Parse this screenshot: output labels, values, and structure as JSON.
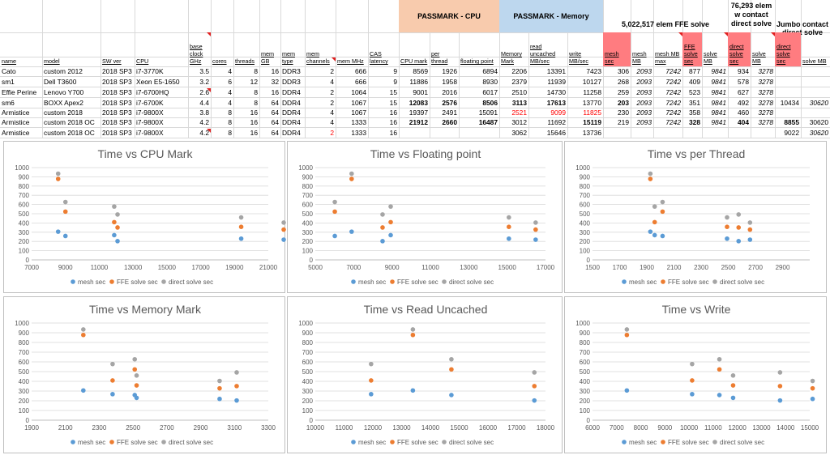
{
  "header_bands": {
    "passmark_cpu": "PASSMARK - CPU",
    "passmark_memory": "PASSMARK - Memory",
    "ffe_solve": "5,022,517 elem FFE solve",
    "contact_direct": "76,293 elem w contact direct solve",
    "jumbo_contact": "Jumbo contact direct solve"
  },
  "columns": [
    "name",
    "model",
    "SW ver",
    "CPU",
    "base clock GHz",
    "cores",
    "threads",
    "mem GB",
    "mem type",
    "mem channels",
    "mem MHz",
    "CAS latency",
    "CPU mark",
    "per thread",
    "floating point",
    "Memory Mark",
    "read uncached MB/sec",
    "write MB/sec",
    "mesh sec",
    "mesh MB",
    "mesh MB max",
    "FFE solve sec",
    "solve MB",
    "direct solve sec",
    "solve MB",
    "direct solve sec",
    "solve MB"
  ],
  "rows": [
    [
      "Cato",
      "custom 2012",
      "2018 SP3",
      "i7-3770K",
      "3.5",
      "4",
      "8",
      "16",
      "DDR3",
      "2",
      "666",
      "9",
      "8569",
      "1926",
      "6894",
      "2206",
      "13391",
      "7423",
      "306",
      "2093",
      "7242",
      "877",
      "9841",
      "934",
      "3278",
      "",
      ""
    ],
    [
      "sm1",
      "Dell T3600",
      "2018 SP3",
      "Xeon E5-1650",
      "3.2",
      "6",
      "12",
      "32",
      "DDR3",
      "4",
      "666",
      "9",
      "11886",
      "1958",
      "8930",
      "2379",
      "11939",
      "10127",
      "268",
      "2093",
      "7242",
      "409",
      "9841",
      "578",
      "3278",
      "",
      ""
    ],
    [
      "Effie Perine",
      "Lenovo Y700",
      "2018 SP3",
      "i7-6700HQ",
      "2.6",
      "4",
      "8",
      "16",
      "DDR4",
      "2",
      "1064",
      "15",
      "9001",
      "2016",
      "6017",
      "2510",
      "14730",
      "11258",
      "259",
      "2093",
      "7242",
      "523",
      "9841",
      "627",
      "3278",
      "",
      ""
    ],
    [
      "sm6",
      "BOXX Apex2",
      "2018 SP3",
      "i7-6700K",
      "4.4",
      "4",
      "8",
      "64",
      "DDR4",
      "2",
      "1067",
      "15",
      "12083",
      "2576",
      "8506",
      "3113",
      "17613",
      "13770",
      "203",
      "2093",
      "7242",
      "351",
      "9841",
      "492",
      "3278",
      "10434",
      "30620"
    ],
    [
      "Armistice",
      "custom 2018",
      "2018 SP3",
      "i7-9800X",
      "3.8",
      "8",
      "16",
      "64",
      "DDR4",
      "4",
      "1067",
      "16",
      "19397",
      "2491",
      "15091",
      "2521",
      "9099",
      "11825",
      "230",
      "2093",
      "7242",
      "358",
      "9841",
      "460",
      "3278",
      "",
      ""
    ],
    [
      "Armistice",
      "custom 2018 OC",
      "2018 SP3",
      "i7-9800X",
      "4.2",
      "8",
      "16",
      "64",
      "DDR4",
      "4",
      "1333",
      "16",
      "21912",
      "2660",
      "16487",
      "3012",
      "11692",
      "15119",
      "219",
      "2093",
      "7242",
      "328",
      "9841",
      "404",
      "3278",
      "8855",
      "30620"
    ],
    [
      "Armistice",
      "custom 2018 OC",
      "2018 SP3",
      "i7-9800X",
      "4.2",
      "8",
      "16",
      "64",
      "DDR4",
      "2",
      "1333",
      "16",
      "",
      "",
      "",
      "3062",
      "15646",
      "13736",
      "",
      "",
      "",
      "",
      "",
      "",
      "",
      "9022",
      "30620"
    ]
  ],
  "colors": {
    "cpu_band": "#f8cbad",
    "mem_band": "#bdd7ee",
    "red_header": "#ff7c80",
    "mesh": "#5b9bd5",
    "ffe": "#ed7d31",
    "direct": "#a5a5a5",
    "red_text": "#ff0000"
  },
  "chart_data": [
    {
      "type": "scatter",
      "title": "Time vs CPU Mark",
      "xlim": [
        7000,
        21000
      ],
      "xticks": [
        7000,
        9000,
        11000,
        13000,
        15000,
        17000,
        19000,
        21000
      ],
      "ylim": [
        0,
        1000
      ],
      "yticks": [
        0,
        100,
        200,
        300,
        400,
        500,
        600,
        700,
        800,
        900,
        1000
      ],
      "series": [
        {
          "name": "mesh sec",
          "x": [
            8569,
            11886,
            9001,
            12083,
            19397,
            21912
          ],
          "y": [
            306,
            268,
            259,
            203,
            230,
            219
          ]
        },
        {
          "name": "FFE solve sec",
          "x": [
            8569,
            11886,
            9001,
            12083,
            19397,
            21912
          ],
          "y": [
            877,
            409,
            523,
            351,
            358,
            328
          ]
        },
        {
          "name": "direct solve sec",
          "x": [
            8569,
            11886,
            9001,
            12083,
            19397,
            21912
          ],
          "y": [
            934,
            578,
            627,
            492,
            460,
            404
          ]
        }
      ]
    },
    {
      "type": "scatter",
      "title": "Time vs Floating point",
      "xlim": [
        5000,
        17000
      ],
      "xticks": [
        5000,
        7000,
        9000,
        11000,
        13000,
        15000,
        17000
      ],
      "ylim": [
        0,
        1000
      ],
      "yticks": [
        0,
        100,
        200,
        300,
        400,
        500,
        600,
        700,
        800,
        900,
        1000
      ],
      "series": [
        {
          "name": "mesh sec",
          "x": [
            6894,
            8930,
            6017,
            8506,
            15091,
            16487
          ],
          "y": [
            306,
            268,
            259,
            203,
            230,
            219
          ]
        },
        {
          "name": "FFE solve sec",
          "x": [
            6894,
            8930,
            6017,
            8506,
            15091,
            16487
          ],
          "y": [
            877,
            409,
            523,
            351,
            358,
            328
          ]
        },
        {
          "name": "direct solve sec",
          "x": [
            6894,
            8930,
            6017,
            8506,
            15091,
            16487
          ],
          "y": [
            934,
            578,
            627,
            492,
            460,
            404
          ]
        }
      ]
    },
    {
      "type": "scatter",
      "title": "Time vs per Thread",
      "xlim": [
        1500,
        3100
      ],
      "xticks": [
        1500,
        1700,
        1900,
        2100,
        2300,
        2500,
        2700,
        2900
      ],
      "ylim": [
        0,
        1000
      ],
      "yticks": [
        0,
        100,
        200,
        300,
        400,
        500,
        600,
        700,
        800,
        900,
        1000
      ],
      "series": [
        {
          "name": "mesh sec",
          "x": [
            1926,
            1958,
            2016,
            2576,
            2491,
            2660
          ],
          "y": [
            306,
            268,
            259,
            203,
            230,
            219
          ]
        },
        {
          "name": "FFE solve sec",
          "x": [
            1926,
            1958,
            2016,
            2576,
            2491,
            2660
          ],
          "y": [
            877,
            409,
            523,
            351,
            358,
            328
          ]
        },
        {
          "name": "direct solve sec",
          "x": [
            1926,
            1958,
            2016,
            2576,
            2491,
            2660
          ],
          "y": [
            934,
            578,
            627,
            492,
            460,
            404
          ]
        }
      ]
    },
    {
      "type": "scatter",
      "title": "Time vs Memory Mark",
      "xlim": [
        1900,
        3300
      ],
      "xticks": [
        1900,
        2100,
        2300,
        2500,
        2700,
        2900,
        3100,
        3300
      ],
      "ylim": [
        0,
        1000
      ],
      "yticks": [
        0,
        100,
        200,
        300,
        400,
        500,
        600,
        700,
        800,
        900,
        1000
      ],
      "series": [
        {
          "name": "mesh sec",
          "x": [
            2206,
            2379,
            2510,
            3113,
            2521,
            3012
          ],
          "y": [
            306,
            268,
            259,
            203,
            230,
            219
          ]
        },
        {
          "name": "FFE solve sec",
          "x": [
            2206,
            2379,
            2510,
            3113,
            2521,
            3012
          ],
          "y": [
            877,
            409,
            523,
            351,
            358,
            328
          ]
        },
        {
          "name": "direct solve sec",
          "x": [
            2206,
            2379,
            2510,
            3113,
            2521,
            3012
          ],
          "y": [
            934,
            578,
            627,
            492,
            460,
            404
          ]
        }
      ]
    },
    {
      "type": "scatter",
      "title": "Time vs Read Uncached",
      "xlim": [
        10000,
        18000
      ],
      "xticks": [
        10000,
        11000,
        12000,
        13000,
        14000,
        15000,
        16000,
        17000,
        18000
      ],
      "ylim": [
        0,
        1000
      ],
      "yticks": [
        0,
        100,
        200,
        300,
        400,
        500,
        600,
        700,
        800,
        900,
        1000
      ],
      "series": [
        {
          "name": "mesh sec",
          "x": [
            13391,
            11939,
            14730,
            17613
          ],
          "y": [
            306,
            268,
            259,
            203
          ]
        },
        {
          "name": "FFE solve sec",
          "x": [
            13391,
            11939,
            14730,
            17613
          ],
          "y": [
            877,
            409,
            523,
            351
          ]
        },
        {
          "name": "direct solve sec",
          "x": [
            13391,
            11939,
            14730,
            17613
          ],
          "y": [
            934,
            578,
            627,
            492
          ]
        }
      ]
    },
    {
      "type": "scatter",
      "title": "Time vs Write",
      "xlim": [
        6000,
        15000
      ],
      "xticks": [
        6000,
        7000,
        8000,
        9000,
        10000,
        11000,
        12000,
        13000,
        14000,
        15000
      ],
      "ylim": [
        0,
        1000
      ],
      "yticks": [
        0,
        100,
        200,
        300,
        400,
        500,
        600,
        700,
        800,
        900,
        1000
      ],
      "series": [
        {
          "name": "mesh sec",
          "x": [
            7423,
            10127,
            11258,
            13770,
            11825,
            15119
          ],
          "y": [
            306,
            268,
            259,
            203,
            230,
            219
          ]
        },
        {
          "name": "FFE solve sec",
          "x": [
            7423,
            10127,
            11258,
            13770,
            11825,
            15119
          ],
          "y": [
            877,
            409,
            523,
            351,
            358,
            328
          ]
        },
        {
          "name": "direct solve sec",
          "x": [
            7423,
            10127,
            11258,
            13770,
            11825,
            15119
          ],
          "y": [
            934,
            578,
            627,
            492,
            460,
            404
          ]
        }
      ]
    }
  ]
}
